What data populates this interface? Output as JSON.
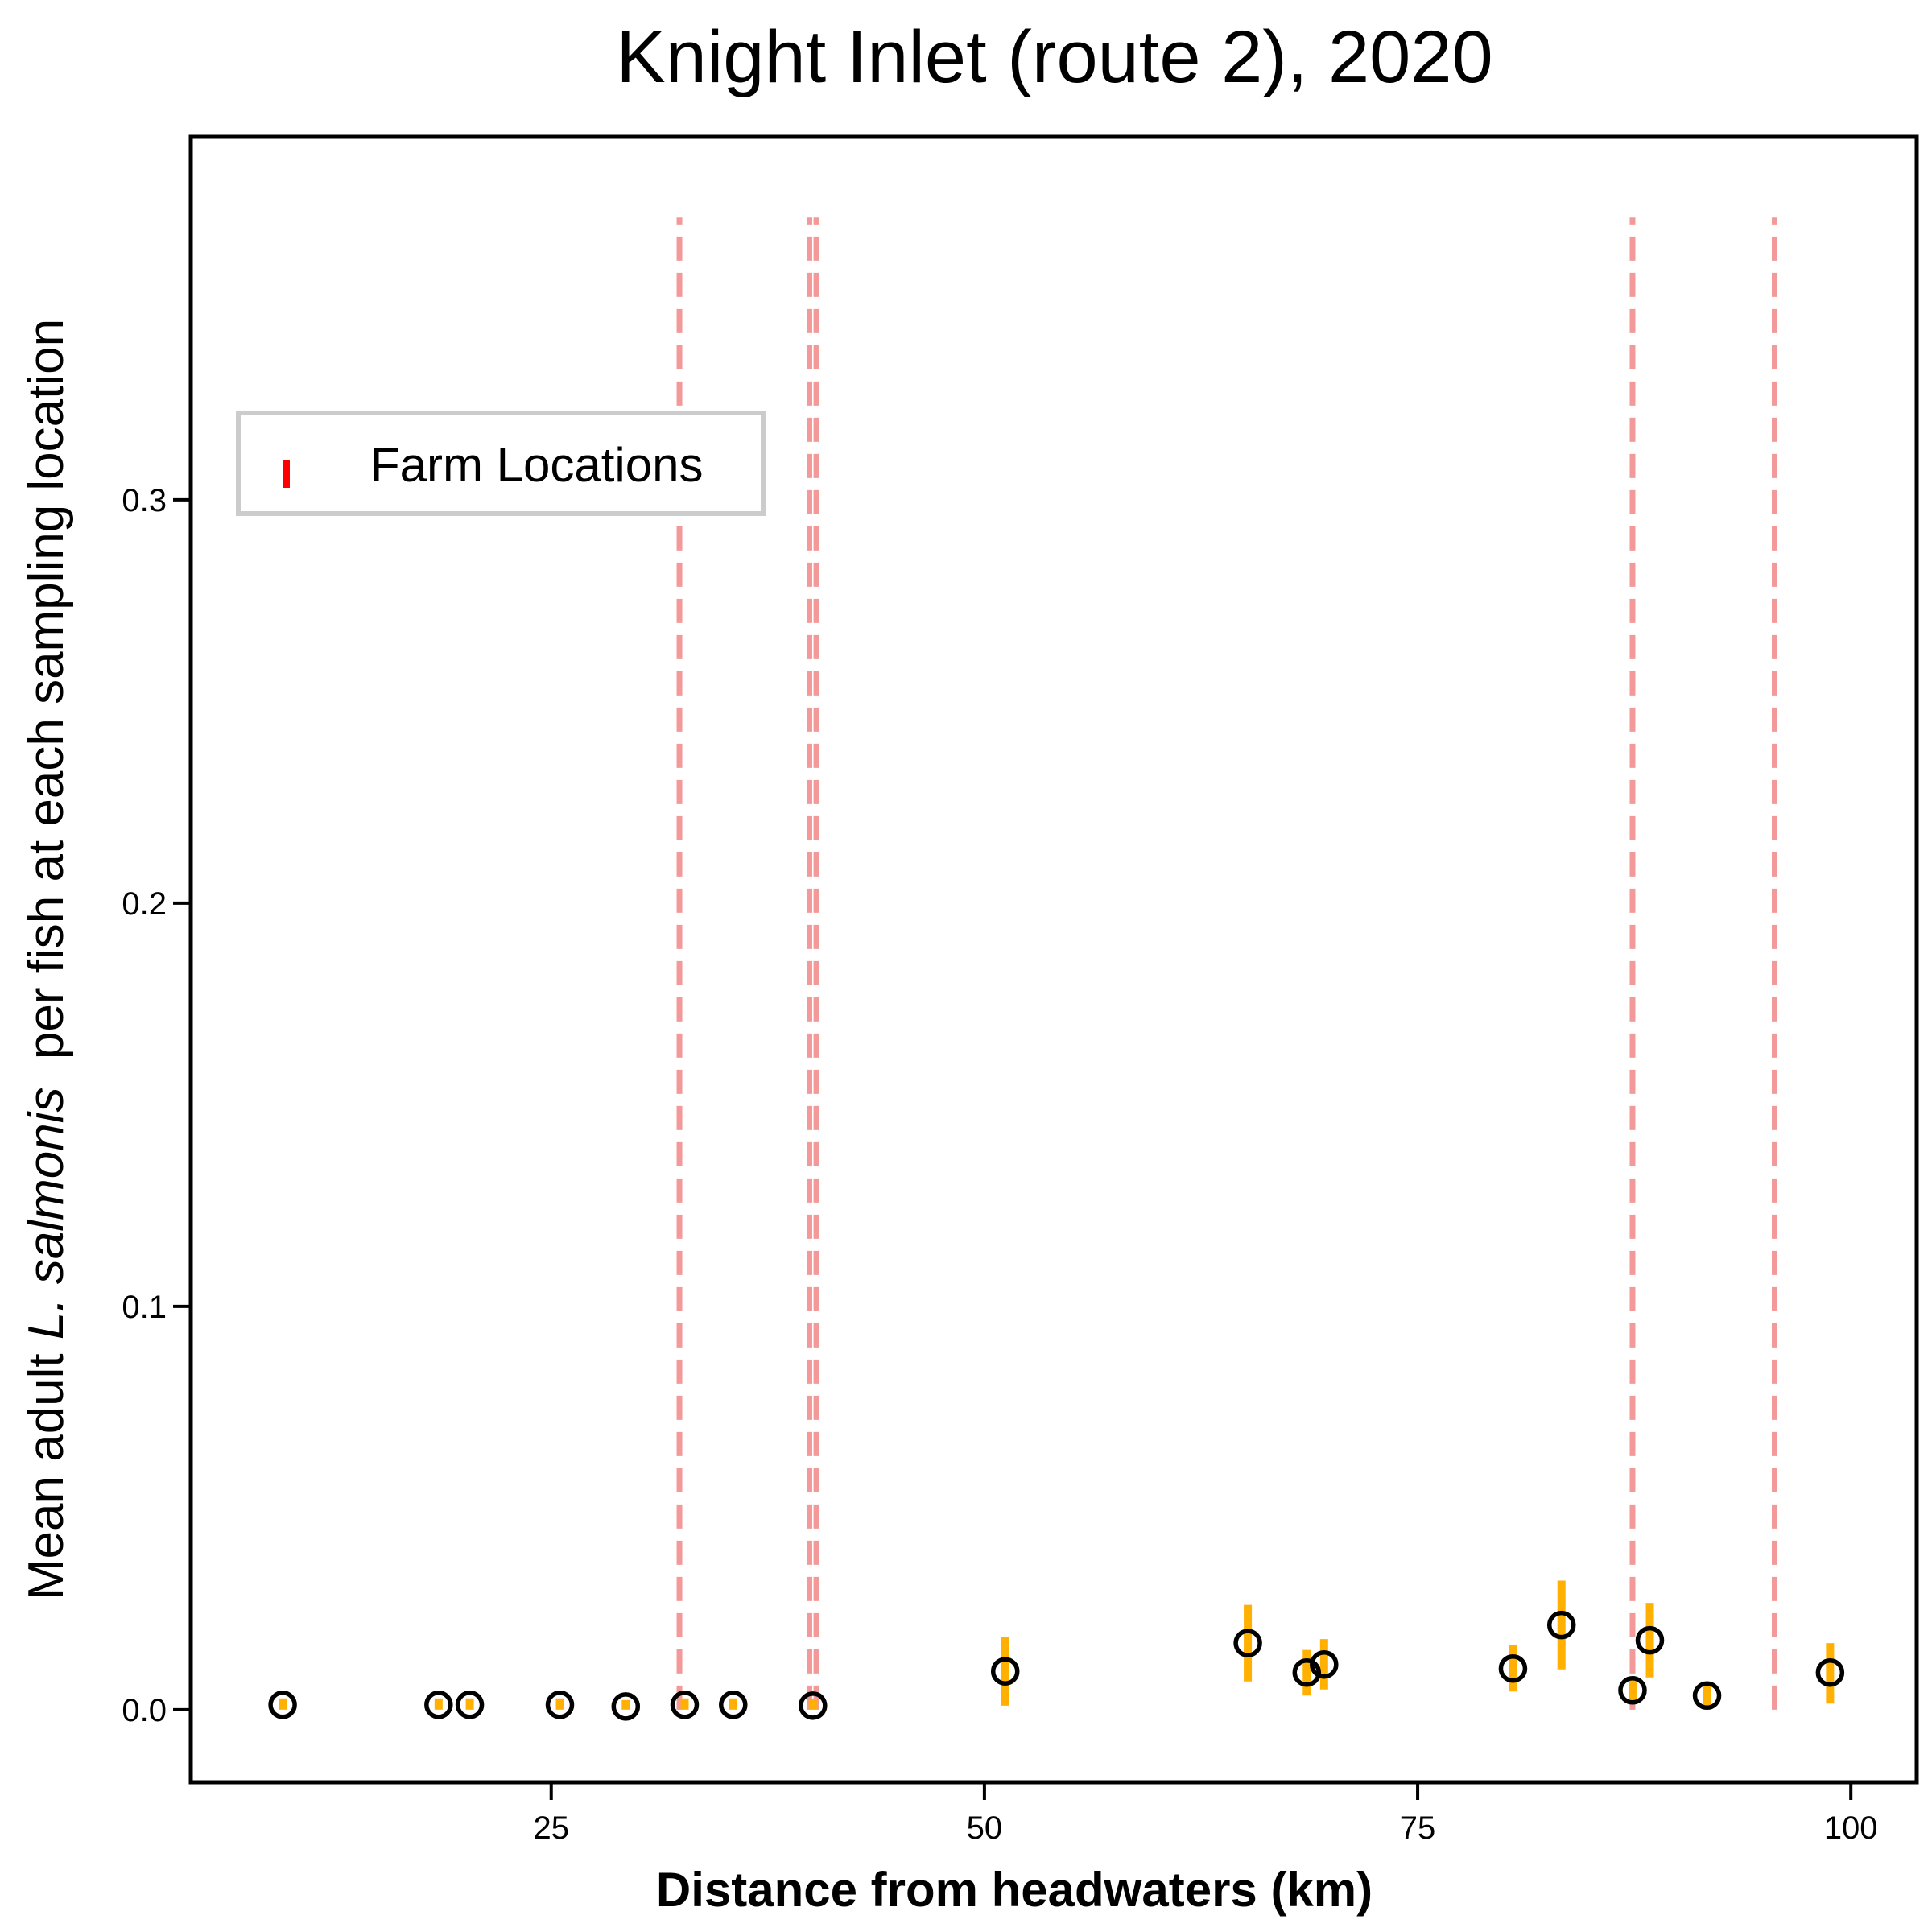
{
  "chart_data": {
    "type": "scatter",
    "title": "Knight Inlet (route 2), 2020",
    "xlabel": "Distance from headwaters (km)",
    "ylabel": {
      "prefix": "Mean adult ",
      "species": "L. salmonis",
      "suffix": "  per fish at each sampling location"
    },
    "xlim": [
      4.2,
      103.8
    ],
    "ylim": [
      -0.018,
      0.39
    ],
    "xticks": [
      25,
      50,
      75,
      100
    ],
    "yticks": [
      0.0,
      0.1,
      0.2,
      0.3
    ],
    "ytick_labels": [
      "0.0",
      "0.1",
      "0.2",
      "0.3"
    ],
    "grid": false,
    "legend": {
      "position": "upper-left",
      "entries": [
        "Farm Locations"
      ]
    },
    "colors": {
      "points": "#000000",
      "error_bars": "#FFB000",
      "farm_lines": "#F4999A",
      "legend_marker": "#FF0000"
    },
    "farm_locations_km": [
      32.4,
      39.9,
      40.3,
      87.4,
      95.6
    ],
    "farm_line_ymax": 0.37,
    "points": [
      {
        "x": 9.5,
        "y": 0.0012,
        "lo": 0.0,
        "hi": 0.0028
      },
      {
        "x": 18.5,
        "y": 0.0012,
        "lo": 0.0,
        "hi": 0.0028
      },
      {
        "x": 20.3,
        "y": 0.0012,
        "lo": 0.0,
        "hi": 0.0028
      },
      {
        "x": 25.5,
        "y": 0.0012,
        "lo": 0.0,
        "hi": 0.0028
      },
      {
        "x": 29.3,
        "y": 0.0008,
        "lo": 0.0,
        "hi": 0.0024
      },
      {
        "x": 32.7,
        "y": 0.0012,
        "lo": 0.0,
        "hi": 0.0028
      },
      {
        "x": 35.5,
        "y": 0.0012,
        "lo": 0.0,
        "hi": 0.0028
      },
      {
        "x": 40.1,
        "y": 0.001,
        "lo": 0.0,
        "hi": 0.0026
      },
      {
        "x": 51.2,
        "y": 0.0095,
        "lo": 0.001,
        "hi": 0.018
      },
      {
        "x": 65.2,
        "y": 0.0165,
        "lo": 0.007,
        "hi": 0.026
      },
      {
        "x": 68.6,
        "y": 0.0092,
        "lo": 0.0035,
        "hi": 0.0148
      },
      {
        "x": 69.6,
        "y": 0.0112,
        "lo": 0.005,
        "hi": 0.0175
      },
      {
        "x": 80.5,
        "y": 0.0102,
        "lo": 0.0045,
        "hi": 0.016
      },
      {
        "x": 83.3,
        "y": 0.021,
        "lo": 0.01,
        "hi": 0.032
      },
      {
        "x": 87.4,
        "y": 0.0048,
        "lo": 0.0015,
        "hi": 0.0082
      },
      {
        "x": 88.4,
        "y": 0.0172,
        "lo": 0.008,
        "hi": 0.0265
      },
      {
        "x": 91.7,
        "y": 0.0035,
        "lo": 0.0008,
        "hi": 0.0062
      },
      {
        "x": 98.8,
        "y": 0.0092,
        "lo": 0.0015,
        "hi": 0.0165
      }
    ]
  }
}
